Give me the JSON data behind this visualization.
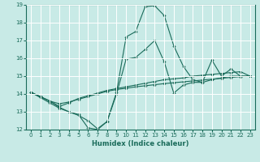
{
  "title": "",
  "xlabel": "Humidex (Indice chaleur)",
  "xlim": [
    -0.5,
    23.5
  ],
  "ylim": [
    12,
    19
  ],
  "yticks": [
    12,
    13,
    14,
    15,
    16,
    17,
    18,
    19
  ],
  "xticks": [
    0,
    1,
    2,
    3,
    4,
    5,
    6,
    7,
    8,
    9,
    10,
    11,
    12,
    13,
    14,
    15,
    16,
    17,
    18,
    19,
    20,
    21,
    22,
    23
  ],
  "bg_color": "#c8eae6",
  "line_color": "#1a6b5a",
  "grid_color": "#ffffff",
  "lines": [
    {
      "x": [
        0,
        1,
        2,
        3,
        4,
        5,
        6,
        7,
        8,
        9,
        10,
        11,
        12,
        13,
        14,
        15,
        16,
        17,
        18,
        19,
        20,
        21,
        22,
        23
      ],
      "y": [
        14.1,
        13.8,
        13.5,
        13.2,
        13.0,
        12.85,
        12.1,
        12.0,
        12.45,
        14.1,
        17.2,
        17.5,
        18.9,
        18.95,
        18.4,
        16.7,
        15.55,
        14.8,
        14.65,
        15.9,
        15.0,
        15.4,
        15.0,
        15.0
      ]
    },
    {
      "x": [
        0,
        1,
        2,
        3,
        4,
        5,
        6,
        7,
        8,
        9,
        10,
        11,
        12,
        13,
        14,
        15,
        16,
        17,
        18,
        19,
        20,
        21,
        22,
        23
      ],
      "y": [
        14.1,
        13.85,
        13.6,
        13.3,
        13.5,
        13.75,
        13.9,
        14.05,
        14.2,
        14.3,
        14.4,
        14.5,
        14.6,
        14.7,
        14.8,
        14.85,
        14.9,
        15.0,
        15.05,
        15.1,
        15.15,
        15.2,
        15.25,
        15.0
      ]
    },
    {
      "x": [
        0,
        1,
        2,
        3,
        4,
        5,
        6,
        7,
        8,
        9,
        10,
        11,
        12,
        13,
        14,
        15,
        16,
        17,
        18,
        19,
        20,
        21,
        22,
        23
      ],
      "y": [
        14.1,
        13.85,
        13.6,
        13.45,
        13.55,
        13.7,
        13.85,
        14.0,
        14.15,
        14.25,
        14.32,
        14.4,
        14.46,
        14.52,
        14.58,
        14.63,
        14.68,
        14.73,
        14.78,
        14.83,
        14.88,
        14.93,
        14.97,
        15.0
      ]
    },
    {
      "x": [
        0,
        1,
        2,
        3,
        4,
        5,
        6,
        7,
        8,
        9,
        10,
        11,
        12,
        13,
        14,
        15,
        16,
        17,
        18,
        19,
        20,
        21,
        22,
        23
      ],
      "y": [
        14.1,
        13.85,
        13.6,
        13.25,
        13.0,
        12.8,
        12.5,
        12.05,
        12.45,
        14.0,
        15.95,
        16.05,
        16.5,
        17.0,
        15.8,
        14.05,
        14.5,
        14.65,
        14.65,
        14.8,
        14.9,
        15.0,
        15.0,
        15.0
      ]
    }
  ]
}
